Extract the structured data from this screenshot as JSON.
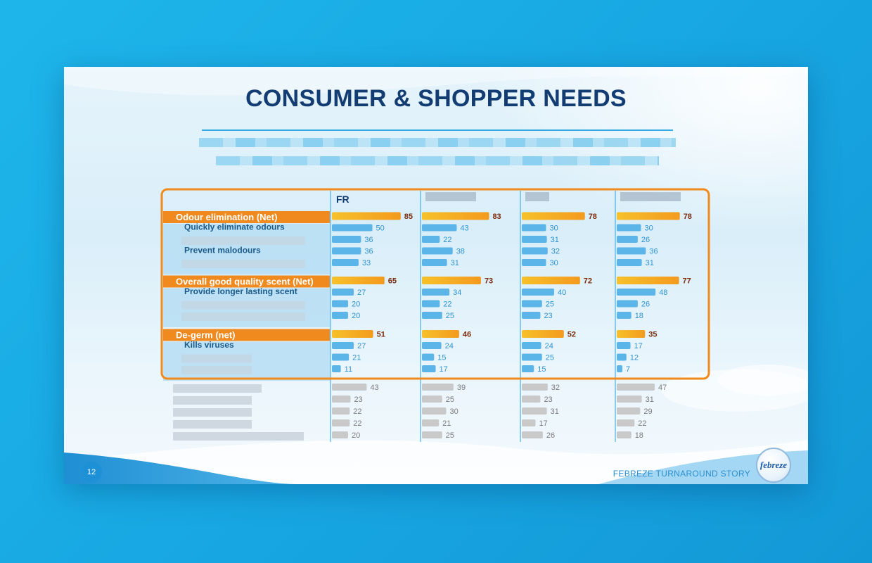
{
  "slide": {
    "title": "CONSUMER & SHOPPER NEEDS",
    "slide_number": "12",
    "footer": "FEBREZE TURNAROUND STORY",
    "logo_text": "febreze"
  },
  "colors": {
    "net_bar": "#f39a1e",
    "sub_bar": "#5bb5e8",
    "grey_bar": "#c9c9c9",
    "net_label_bg": "#f0891e",
    "highlight_border": "#f08a1c",
    "title": "#133c73"
  },
  "chart_data": {
    "type": "bar",
    "orientation": "horizontal",
    "columns": [
      "FR",
      "",
      "",
      ""
    ],
    "groups": [
      {
        "label": "Odour elimination (Net)",
        "net": [
          85,
          83,
          78,
          78
        ],
        "items": [
          {
            "label": "Quickly eliminate odours",
            "values": [
              50,
              43,
              30,
              30
            ]
          },
          {
            "label": "",
            "values": [
              36,
              22,
              31,
              26
            ]
          },
          {
            "label": "Prevent malodours",
            "values": [
              36,
              38,
              32,
              36
            ]
          },
          {
            "label": "",
            "values": [
              33,
              31,
              30,
              31
            ]
          }
        ]
      },
      {
        "label": "Overall good quality scent (Net)",
        "net": [
          65,
          73,
          72,
          77
        ],
        "items": [
          {
            "label": "Provide longer lasting scent",
            "values": [
              27,
              34,
              40,
              48
            ]
          },
          {
            "label": "",
            "values": [
              20,
              22,
              25,
              26
            ]
          },
          {
            "label": "",
            "values": [
              20,
              25,
              23,
              18
            ]
          }
        ]
      },
      {
        "label": "De-germ (net)",
        "net": [
          51,
          46,
          52,
          35
        ],
        "items": [
          {
            "label": "Kills viruses",
            "values": [
              27,
              24,
              24,
              17
            ]
          },
          {
            "label": "",
            "values": [
              21,
              15,
              25,
              12
            ]
          },
          {
            "label": "",
            "values": [
              11,
              17,
              15,
              7
            ]
          }
        ]
      }
    ],
    "other_rows": [
      {
        "label": "",
        "values": [
          43,
          39,
          32,
          47
        ]
      },
      {
        "label": "",
        "values": [
          23,
          25,
          23,
          31
        ]
      },
      {
        "label": "",
        "values": [
          22,
          30,
          31,
          29
        ]
      },
      {
        "label": "",
        "values": [
          22,
          21,
          17,
          22
        ]
      },
      {
        "label": "",
        "values": [
          20,
          25,
          26,
          18
        ]
      }
    ]
  }
}
